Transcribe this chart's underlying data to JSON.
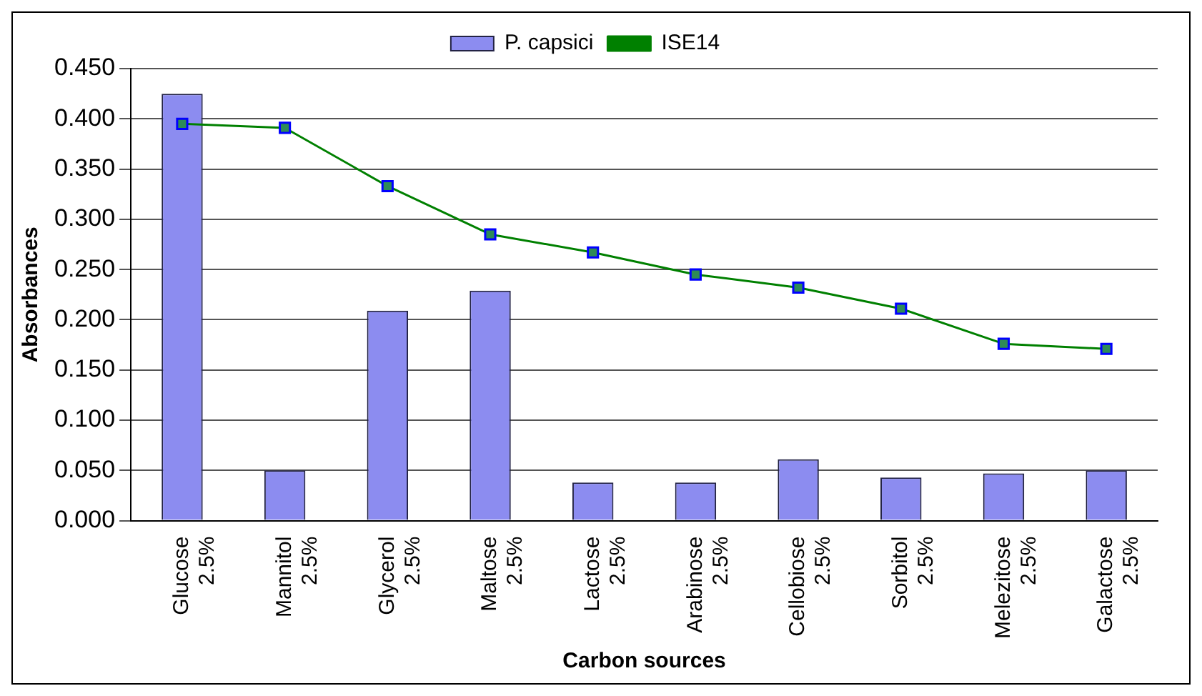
{
  "chart_data": {
    "type": "bar",
    "xlabel": "Carbon sources",
    "ylabel": "Absorbances",
    "categories": [
      "Glucose 2.5%",
      "Mannitol 2.5%",
      "Glycerol 2.5%",
      "Maltose 2.5%",
      "Lactose 2.5%",
      "Arabinose 2.5%",
      "Cellobiose 2.5%",
      "Sorbitol 2.5%",
      "Melezitose 2.5%",
      "Galactose 2.5%"
    ],
    "series": [
      {
        "name": "P. capsici",
        "color": "#8c8cf0",
        "values": [
          0.425,
          0.05,
          0.209,
          0.229,
          0.038,
          0.038,
          0.061,
          0.043,
          0.047,
          0.05
        ]
      },
      {
        "name": "ISE14",
        "type": "line",
        "color": "#008000",
        "values": [
          0.395,
          0.391,
          0.333,
          0.285,
          0.267,
          0.245,
          0.232,
          0.211,
          0.176,
          0.171
        ]
      }
    ],
    "ylim": [
      0,
      0.45
    ],
    "yticks": [
      {
        "value": 0,
        "label": "0.000"
      },
      {
        "value": 0.05,
        "label": "0.050"
      },
      {
        "value": 0.1,
        "label": "0.100"
      },
      {
        "value": 0.15,
        "label": "0.150"
      },
      {
        "value": 0.2,
        "label": "0.200"
      },
      {
        "value": 0.25,
        "label": "0.250"
      },
      {
        "value": 0.3,
        "label": "0.300"
      },
      {
        "value": 0.35,
        "label": "0.350"
      },
      {
        "value": 0.4,
        "label": "0.400"
      },
      {
        "value": 0.45,
        "label": "0.450"
      }
    ],
    "grid": "y",
    "legend": "top",
    "marker": "square",
    "line_style": "solid"
  }
}
